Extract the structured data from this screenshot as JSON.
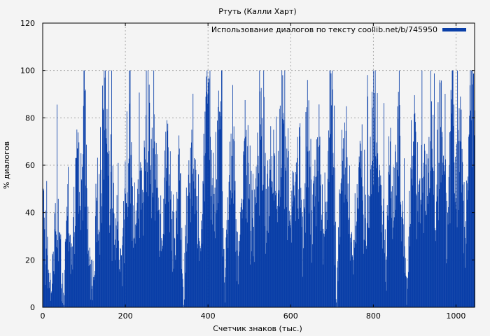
{
  "chart_data": {
    "type": "bar",
    "title": "Ртуть (Калли Харт)",
    "xlabel": "Счетчик знаков (тыс.)",
    "ylabel": "% диалогов",
    "xlim": [
      0,
      1045
    ],
    "ylim": [
      0,
      120
    ],
    "xticks": [
      0,
      200,
      400,
      600,
      800,
      1000
    ],
    "yticks": [
      0,
      20,
      40,
      60,
      80,
      100,
      120
    ],
    "grid": true,
    "legend_position": "top-right",
    "series": [
      {
        "name": "Использование диалогов по тексту coollib.net/b/745950",
        "color": "#0a3fa8",
        "x_step_thousand_chars": 1,
        "values_every_10k": [
          38,
          22,
          6,
          44,
          30,
          1,
          52,
          18,
          63,
          41,
          100,
          24,
          3,
          45,
          58,
          97,
          66,
          40,
          33,
          22,
          48,
          86,
          29,
          54,
          44,
          100,
          58,
          70,
          41,
          26,
          79,
          49,
          22,
          67,
          1,
          47,
          75,
          58,
          26,
          64,
          95,
          35,
          54,
          87,
          2,
          53,
          71,
          24,
          44,
          72,
          52,
          34,
          60,
          80,
          50,
          58,
          65,
          48,
          98,
          67,
          39,
          53,
          76,
          25,
          96,
          41,
          55,
          72,
          31,
          66,
          100,
          2,
          48,
          78,
          31,
          20,
          52,
          66,
          28,
          47,
          100,
          65,
          43,
          20,
          70,
          38,
          91,
          45,
          1,
          59,
          82,
          36,
          61,
          47,
          87,
          28,
          96,
          60,
          35,
          100,
          46,
          89,
          34,
          72,
          100
        ]
      }
    ]
  }
}
